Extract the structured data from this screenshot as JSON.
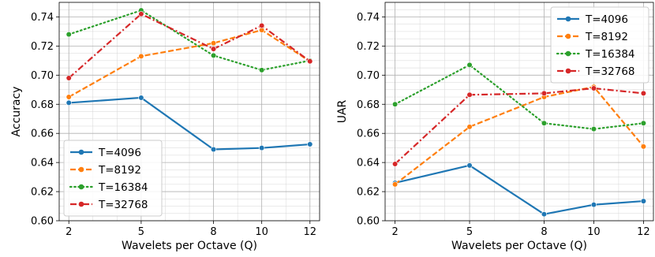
{
  "chart_data": [
    {
      "type": "line",
      "xlabel": "Wavelets per Octave (Q)",
      "ylabel": "Accuracy",
      "x": [
        2,
        5,
        8,
        10,
        12
      ],
      "xticks": [
        "2",
        "5",
        "8",
        "10",
        "12"
      ],
      "xlim": [
        1.6,
        12.4
      ],
      "ylim": [
        0.6,
        0.75
      ],
      "yticks": [
        "0.60",
        "0.62",
        "0.64",
        "0.66",
        "0.68",
        "0.70",
        "0.72",
        "0.74"
      ],
      "grid": true,
      "legend_position": "bottom-left",
      "series": [
        {
          "name": "T=4096",
          "color": "#1f77b4",
          "dash": "solid",
          "values": [
            0.681,
            0.6845,
            0.649,
            0.65,
            0.6525
          ]
        },
        {
          "name": "T=8192",
          "color": "#ff7f0e",
          "dash": "dashed",
          "values": [
            0.685,
            0.713,
            0.722,
            0.731,
            0.7095
          ]
        },
        {
          "name": "T=16384",
          "color": "#2ca02c",
          "dash": "dotted",
          "values": [
            0.728,
            0.7445,
            0.7135,
            0.7035,
            0.71
          ]
        },
        {
          "name": "T=32768",
          "color": "#d62728",
          "dash": "dashdot",
          "values": [
            0.698,
            0.742,
            0.718,
            0.734,
            0.7095
          ]
        }
      ]
    },
    {
      "type": "line",
      "xlabel": "Wavelets per Octave (Q)",
      "ylabel": "UAR",
      "x": [
        2,
        5,
        8,
        10,
        12
      ],
      "xticks": [
        "2",
        "5",
        "8",
        "10",
        "12"
      ],
      "xlim": [
        1.6,
        12.4
      ],
      "ylim": [
        0.6,
        0.75
      ],
      "yticks": [
        "0.60",
        "0.62",
        "0.64",
        "0.66",
        "0.68",
        "0.70",
        "0.72",
        "0.74"
      ],
      "grid": true,
      "legend_position": "top-right",
      "series": [
        {
          "name": "T=4096",
          "color": "#1f77b4",
          "dash": "solid",
          "values": [
            0.626,
            0.638,
            0.6045,
            0.611,
            0.6135
          ]
        },
        {
          "name": "T=8192",
          "color": "#ff7f0e",
          "dash": "dashed",
          "values": [
            0.625,
            0.6645,
            0.685,
            0.692,
            0.651
          ]
        },
        {
          "name": "T=16384",
          "color": "#2ca02c",
          "dash": "dotted",
          "values": [
            0.68,
            0.707,
            0.667,
            0.663,
            0.667
          ]
        },
        {
          "name": "T=32768",
          "color": "#d62728",
          "dash": "dashdot",
          "values": [
            0.639,
            0.6865,
            0.6875,
            0.691,
            0.6875
          ]
        }
      ]
    }
  ]
}
